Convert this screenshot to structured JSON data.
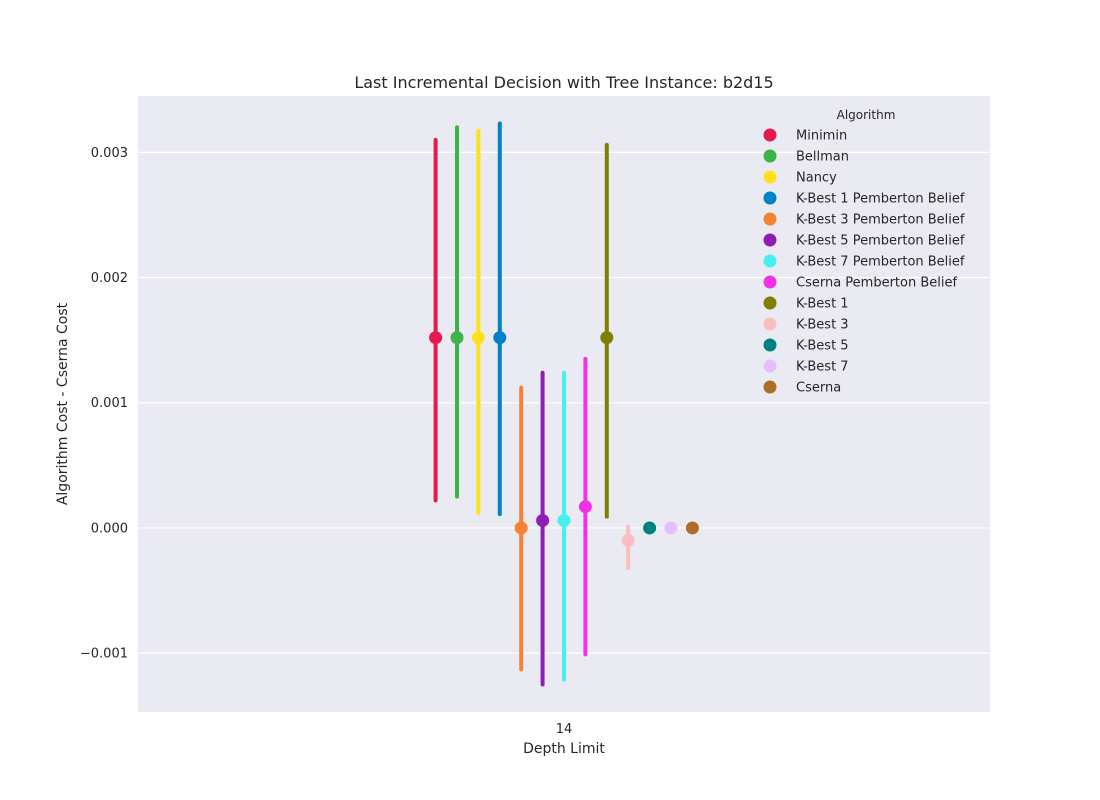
{
  "chart_data": {
    "type": "scatter",
    "title": "Last Incremental Decision with Tree Instance: b2d15",
    "xlabel": "Depth Limit",
    "ylabel": "Algorithm Cost - Cserna Cost",
    "categories": [
      "14"
    ],
    "ylim": [
      -0.00147,
      0.00345
    ],
    "yticks": [
      -0.001,
      0.0,
      0.001,
      0.002,
      0.003
    ],
    "ytick_labels": [
      "−0.001",
      "0.000",
      "0.001",
      "0.002",
      "0.003"
    ],
    "grid": true,
    "legend": {
      "title": "Algorithm",
      "placement": "top-right"
    },
    "series": [
      {
        "name": "Minimin",
        "color": "#e6194b",
        "value": 0.00152,
        "ci": [
          0.00022,
          0.0031
        ]
      },
      {
        "name": "Bellman",
        "color": "#3cb44b",
        "value": 0.00152,
        "ci": [
          0.00025,
          0.0032
        ]
      },
      {
        "name": "Nancy",
        "color": "#ffe119",
        "value": 0.00152,
        "ci": [
          0.00012,
          0.00317
        ]
      },
      {
        "name": "K-Best 1 Pemberton Belief",
        "color": "#0082c8",
        "value": 0.00152,
        "ci": [
          0.00011,
          0.00323
        ]
      },
      {
        "name": "K-Best 3 Pemberton Belief",
        "color": "#f58231",
        "value": 0.0,
        "ci": [
          -0.00113,
          0.00112
        ]
      },
      {
        "name": "K-Best 5 Pemberton Belief",
        "color": "#911eb4",
        "value": 6e-05,
        "ci": [
          -0.00125,
          0.00124
        ]
      },
      {
        "name": "K-Best 7 Pemberton Belief",
        "color": "#46f0f0",
        "value": 6e-05,
        "ci": [
          -0.00121,
          0.00124
        ]
      },
      {
        "name": "Cserna Pemberton Belief",
        "color": "#f032e6",
        "value": 0.00017,
        "ci": [
          -0.00101,
          0.00135
        ]
      },
      {
        "name": "K-Best 1",
        "color": "#808000",
        "value": 0.00152,
        "ci": [
          9e-05,
          0.00306
        ]
      },
      {
        "name": "K-Best 3",
        "color": "#fabebe",
        "value": -0.0001,
        "ci": [
          -0.00032,
          1e-05
        ]
      },
      {
        "name": "K-Best 5",
        "color": "#008080",
        "value": 0.0,
        "ci": [
          0.0,
          0.0
        ]
      },
      {
        "name": "K-Best 7",
        "color": "#e6beff",
        "value": 0.0,
        "ci": [
          0.0,
          0.0
        ]
      },
      {
        "name": "Cserna",
        "color": "#aa6e28",
        "value": 0.0,
        "ci": [
          0.0,
          0.0
        ]
      }
    ]
  }
}
